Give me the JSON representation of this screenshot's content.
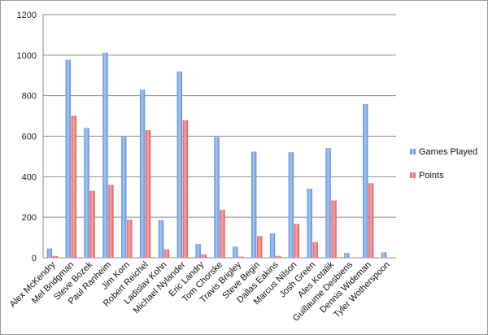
{
  "chart_data": {
    "type": "bar",
    "categories": [
      "Alex McKendry",
      "Mel Bridgman",
      "Steve Bozek",
      "Paul Ranheim",
      "Jim Korn",
      "Robert Reichel",
      "Ladislav Kohn",
      "Michael Nylander",
      "Eric Landry",
      "Tom Chorske",
      "Travis Brigley",
      "Steve Begin",
      "Dallas Eakins",
      "Marcus Nilson",
      "Josh Green",
      "Ales Kotalik",
      "Guillaume Desbiens",
      "Dennis Wideman",
      "Tyler Wotherspoon"
    ],
    "series": [
      {
        "name": "Games Played",
        "color": "#5b8fdb",
        "values": [
          46,
          977,
          641,
          1013,
          597,
          830,
          186,
          920,
          68,
          596,
          55,
          524,
          120,
          521,
          341,
          541,
          24,
          759,
          27
        ]
      },
      {
        "name": "Points",
        "color": "#e8595a",
        "values": [
          9,
          701,
          331,
          360,
          188,
          630,
          42,
          679,
          17,
          237,
          6,
          108,
          9,
          167,
          77,
          283,
          2,
          368,
          2
        ]
      }
    ],
    "yticks": [
      0,
      200,
      400,
      600,
      800,
      1000,
      1200
    ],
    "ylim": [
      0,
      1200
    ],
    "grid": true,
    "legend": "right"
  }
}
